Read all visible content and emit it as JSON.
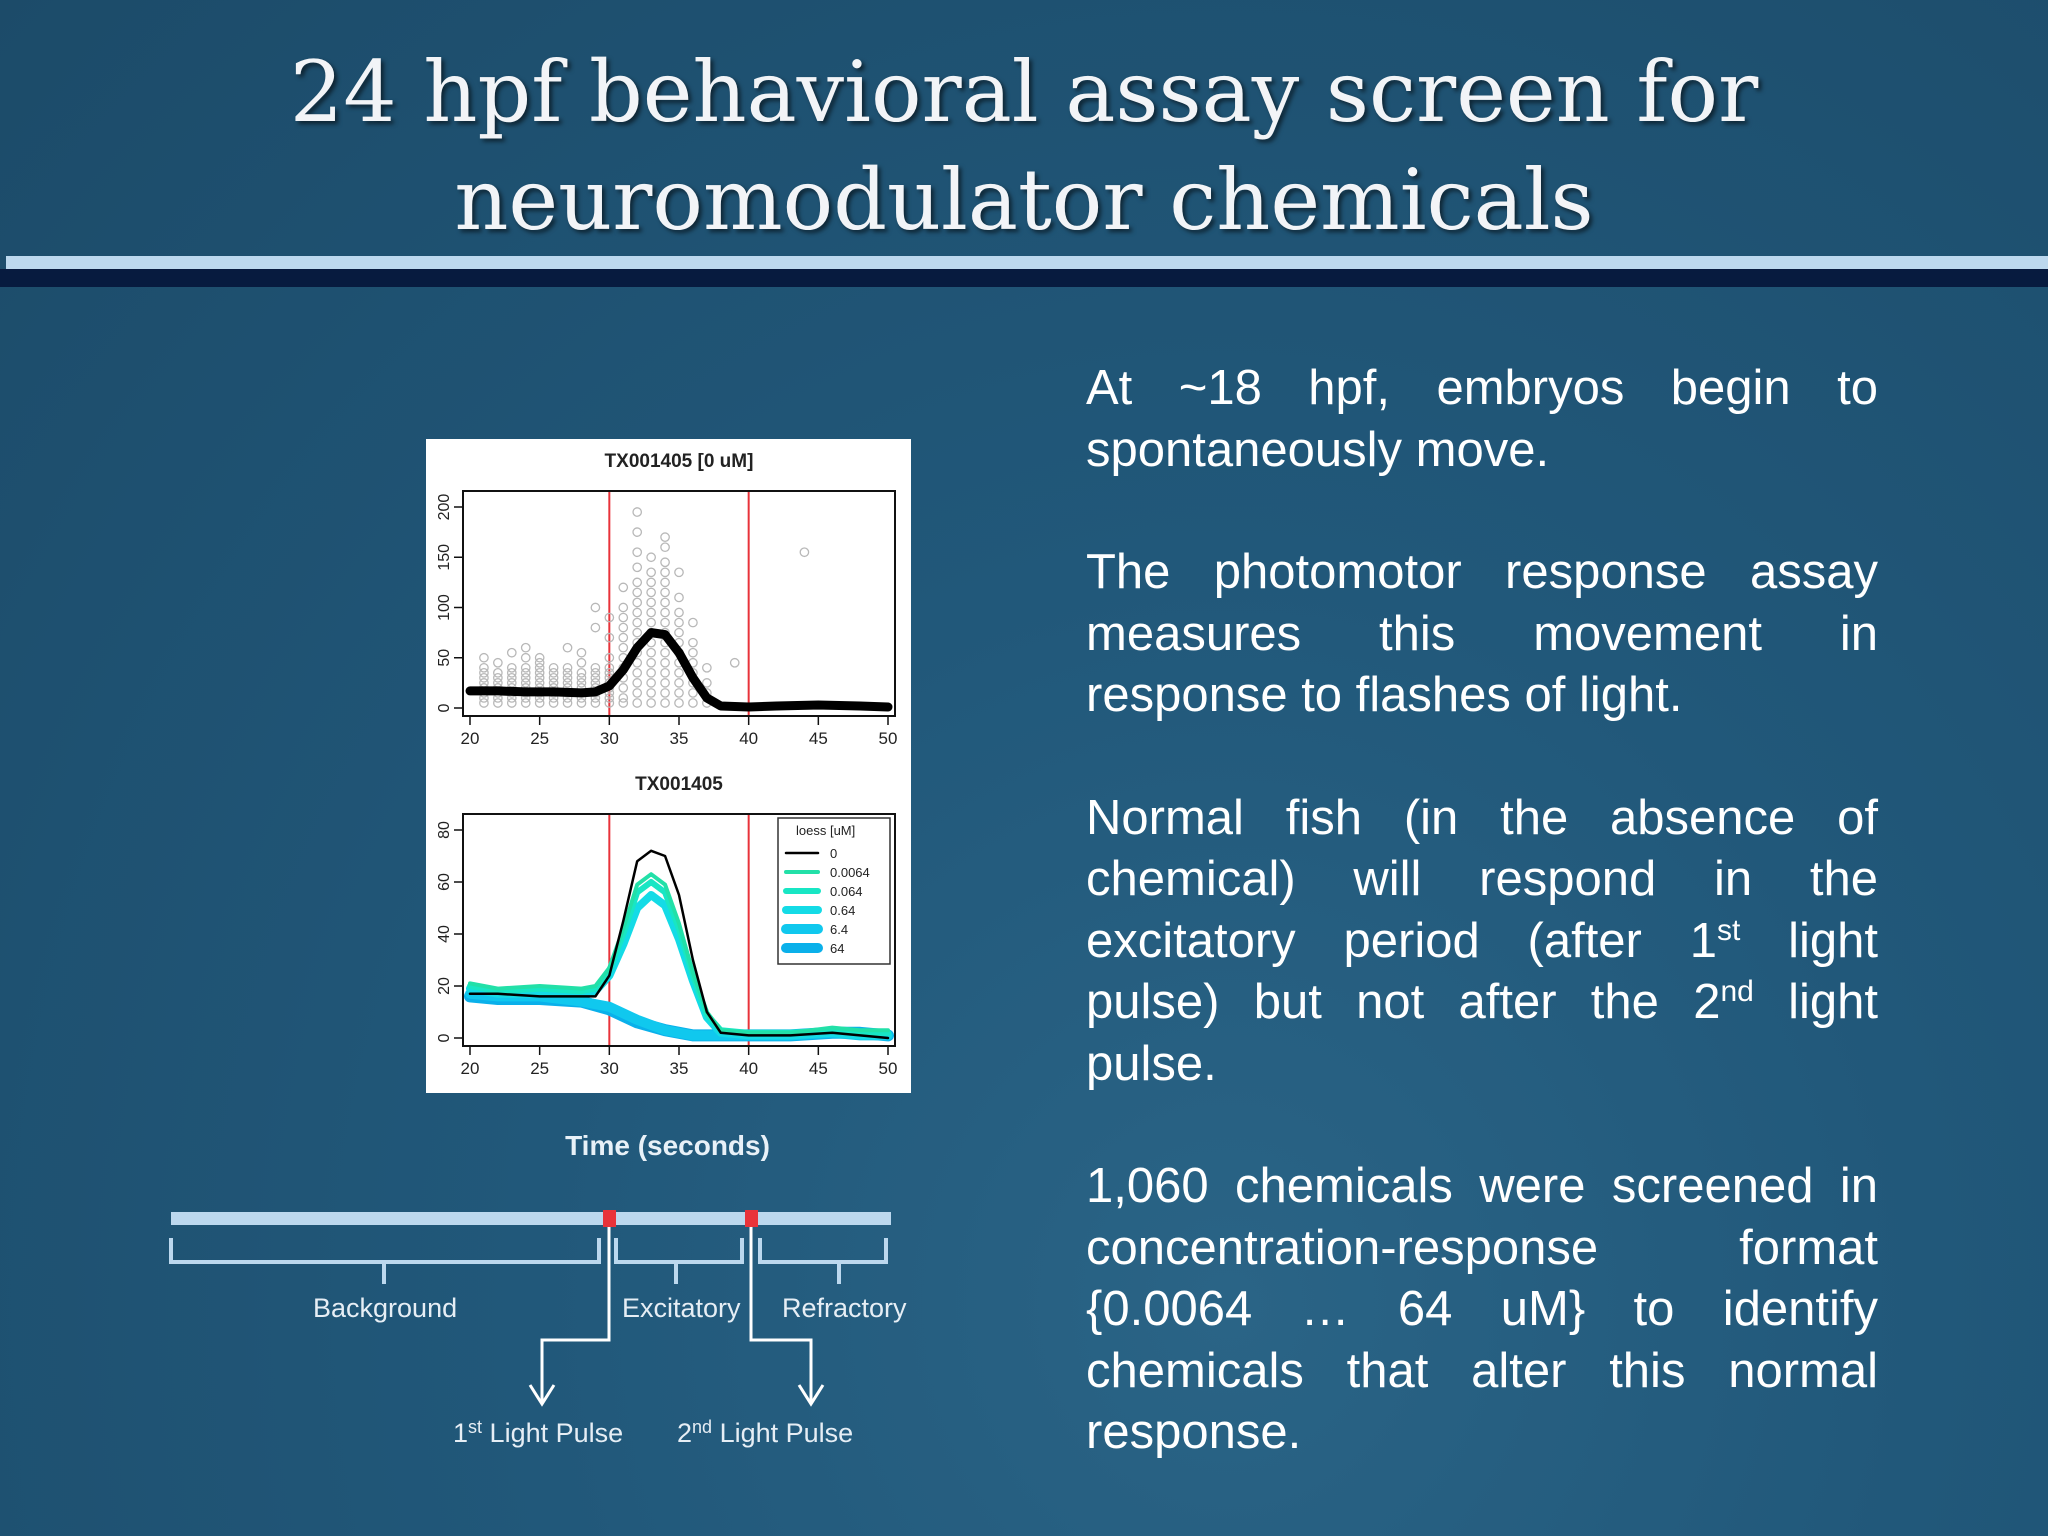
{
  "slide": {
    "title_line1": "24 hpf behavioral assay screen for",
    "title_line2": "neuromodulator chemicals"
  },
  "figure": {
    "time_label": "Time (seconds)"
  },
  "timeline": {
    "background": "Background",
    "excitatory": "Excitatory",
    "refractory": "Refractory",
    "pulse1": {
      "num": "1",
      "sup": "st",
      "rest": " Light Pulse"
    },
    "pulse2": {
      "num": "2",
      "sup": "nd",
      "rest": " Light Pulse"
    }
  },
  "body": {
    "p1": "At ~18 hpf, embryos begin to spontaneously move.",
    "p2": "The photomotor response assay measures this movement in response to flashes of light.",
    "p3_a": "Normal fish (in the absence of chemical) will respond in the excitatory period (after 1",
    "p3_sup1": "st",
    "p3_b": " light pulse) but not after the 2",
    "p3_sup2": "nd",
    "p3_c": " light pulse.",
    "p4": "1,060 chemicals were screened in concentration-response format {0.0064 … 64 uM} to identify chemicals that alter this normal response."
  },
  "colors": {
    "pulse_line": "#e8333a",
    "loess_0": "#000000",
    "loess_0.0064": "#22e0a8",
    "loess_0.064": "#18e6c4",
    "loess_0.64": "#14dbe6",
    "loess_6.4": "#10c8ee",
    "loess_64": "#0ab0ea"
  },
  "chart_data": [
    {
      "type": "scatter",
      "title": "TX001405 [0 uM]",
      "xlim": [
        20,
        50
      ],
      "ylim": [
        0,
        200
      ],
      "xticks": [
        20,
        25,
        30,
        35,
        40,
        45,
        50
      ],
      "yticks": [
        0,
        50,
        100,
        150,
        200
      ],
      "light_pulses": [
        30,
        40
      ],
      "loess": {
        "x": [
          20,
          22,
          24,
          26,
          28,
          29,
          30,
          31,
          32,
          33,
          34,
          35,
          36,
          37,
          38,
          40,
          42,
          45,
          48,
          50
        ],
        "y": [
          17,
          17,
          16,
          16,
          15,
          16,
          22,
          38,
          60,
          75,
          73,
          55,
          30,
          10,
          2,
          1,
          2,
          3,
          2,
          1
        ]
      },
      "points_clusters": [
        {
          "x": 21,
          "values": [
            5,
            10,
            15,
            20,
            25,
            30,
            35,
            40,
            50
          ]
        },
        {
          "x": 22,
          "values": [
            5,
            10,
            15,
            20,
            25,
            30,
            35,
            45
          ]
        },
        {
          "x": 23,
          "values": [
            5,
            10,
            15,
            20,
            25,
            30,
            35,
            40,
            55
          ]
        },
        {
          "x": 24,
          "values": [
            5,
            10,
            15,
            20,
            25,
            30,
            35,
            40,
            50,
            60
          ]
        },
        {
          "x": 25,
          "values": [
            5,
            10,
            15,
            20,
            25,
            30,
            35,
            40,
            45,
            50
          ]
        },
        {
          "x": 26,
          "values": [
            5,
            10,
            15,
            20,
            25,
            30,
            35,
            40
          ]
        },
        {
          "x": 27,
          "values": [
            5,
            10,
            15,
            20,
            25,
            30,
            35,
            40,
            60
          ]
        },
        {
          "x": 28,
          "values": [
            5,
            10,
            15,
            20,
            25,
            30,
            35,
            45,
            55
          ]
        },
        {
          "x": 29,
          "values": [
            5,
            10,
            15,
            20,
            25,
            30,
            35,
            40,
            80,
            100
          ]
        },
        {
          "x": 30,
          "values": [
            5,
            10,
            15,
            20,
            25,
            30,
            35,
            40,
            50,
            70,
            90
          ]
        },
        {
          "x": 31,
          "values": [
            5,
            10,
            20,
            30,
            40,
            50,
            60,
            70,
            80,
            90,
            100,
            120
          ]
        },
        {
          "x": 32,
          "values": [
            5,
            15,
            25,
            35,
            45,
            55,
            65,
            75,
            85,
            95,
            105,
            115,
            125,
            140,
            155,
            175,
            195
          ]
        },
        {
          "x": 33,
          "values": [
            5,
            15,
            25,
            35,
            45,
            55,
            65,
            75,
            85,
            95,
            105,
            115,
            125,
            135,
            150
          ]
        },
        {
          "x": 34,
          "values": [
            5,
            15,
            25,
            35,
            45,
            55,
            65,
            75,
            85,
            95,
            105,
            115,
            125,
            135,
            145,
            160,
            170
          ]
        },
        {
          "x": 35,
          "values": [
            5,
            15,
            25,
            35,
            45,
            55,
            65,
            75,
            85,
            95,
            110,
            135
          ]
        },
        {
          "x": 36,
          "values": [
            5,
            15,
            25,
            35,
            45,
            55,
            65,
            85
          ]
        },
        {
          "x": 37,
          "values": [
            5,
            15,
            25,
            40
          ]
        },
        {
          "x": 39,
          "values": [
            45
          ]
        },
        {
          "x": 44,
          "values": [
            155
          ]
        }
      ],
      "ylabel": "",
      "xlabel": ""
    },
    {
      "type": "line",
      "title": "TX001405",
      "xlim": [
        20,
        50
      ],
      "ylim": [
        0,
        80
      ],
      "xticks": [
        20,
        25,
        30,
        35,
        40,
        45,
        50
      ],
      "yticks": [
        0,
        20,
        40,
        60,
        80
      ],
      "light_pulses": [
        30,
        40
      ],
      "legend_title": "loess [uM]",
      "legend_position": "top-right",
      "series": [
        {
          "name": "64",
          "x": [
            20,
            22,
            25,
            28,
            30,
            32,
            34,
            36,
            38,
            40,
            43,
            46,
            48,
            50
          ],
          "y": [
            16,
            15,
            15,
            14,
            11,
            6,
            3,
            1,
            1,
            1,
            1,
            2,
            2,
            1
          ]
        },
        {
          "name": "6.4",
          "x": [
            20,
            22,
            25,
            28,
            30,
            32,
            34,
            36,
            38,
            40,
            43,
            46,
            48,
            50
          ],
          "y": [
            17,
            16,
            16,
            14,
            12,
            7,
            3,
            1,
            1,
            1,
            1,
            2,
            1,
            1
          ]
        },
        {
          "name": "0.64",
          "x": [
            20,
            22,
            25,
            28,
            29,
            30,
            31,
            32,
            33,
            34,
            35,
            36,
            37,
            38,
            40,
            43,
            46,
            48,
            50
          ],
          "y": [
            19,
            17,
            17,
            17,
            18,
            24,
            36,
            50,
            55,
            51,
            38,
            22,
            8,
            2,
            1,
            1,
            2,
            1,
            1
          ]
        },
        {
          "name": "0.064",
          "x": [
            20,
            22,
            25,
            28,
            29,
            30,
            31,
            32,
            33,
            34,
            35,
            36,
            37,
            38,
            40,
            43,
            46,
            48,
            50
          ],
          "y": [
            20,
            18,
            19,
            18,
            19,
            26,
            40,
            56,
            60,
            56,
            42,
            24,
            9,
            3,
            2,
            2,
            3,
            2,
            2
          ]
        },
        {
          "name": "0.0064",
          "x": [
            20,
            22,
            25,
            28,
            29,
            30,
            31,
            32,
            33,
            34,
            35,
            36,
            37,
            38,
            40,
            43,
            46,
            48,
            50
          ],
          "y": [
            21,
            19,
            20,
            19,
            20,
            27,
            42,
            59,
            63,
            59,
            44,
            25,
            10,
            3,
            2,
            2,
            4,
            3,
            3
          ]
        },
        {
          "name": "0",
          "x": [
            20,
            22,
            25,
            28,
            29,
            30,
            31,
            32,
            33,
            34,
            35,
            36,
            37,
            38,
            40,
            43,
            46,
            48,
            50
          ],
          "y": [
            17,
            17,
            16,
            16,
            16,
            24,
            45,
            68,
            72,
            70,
            55,
            30,
            10,
            2,
            1,
            1,
            2,
            1,
            0
          ]
        }
      ],
      "ylabel": "",
      "xlabel": ""
    }
  ]
}
